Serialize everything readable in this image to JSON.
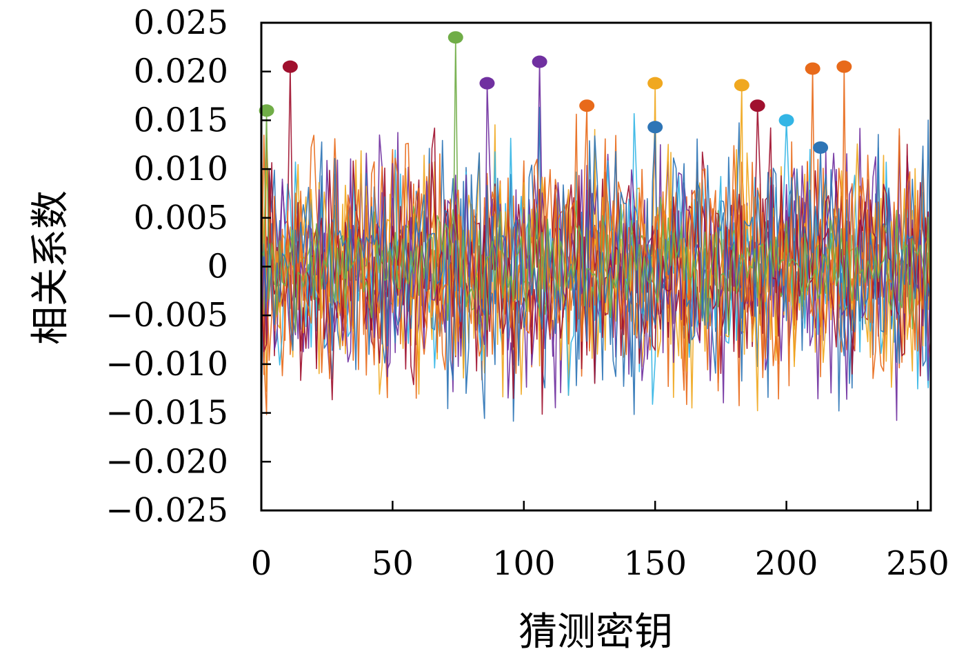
{
  "chart_data": {
    "type": "line",
    "xlabel": "猜测密钥",
    "ylabel": "相关系数",
    "xlim": [
      0,
      255
    ],
    "ylim": [
      -0.025,
      0.025
    ],
    "x_ticks": [
      "0",
      "50",
      "100",
      "150",
      "200",
      "250"
    ],
    "y_ticks": [
      "0.025",
      "0.020",
      "0.015",
      "0.010",
      "0.005",
      "0",
      "−0.005",
      "−0.010",
      "−0.015",
      "−0.020",
      "−0.025"
    ],
    "x_tick_values": [
      0,
      50,
      100,
      150,
      200,
      250
    ],
    "y_tick_values": [
      0.025,
      0.02,
      0.015,
      0.01,
      0.005,
      0,
      -0.005,
      -0.01,
      -0.015,
      -0.02,
      -0.025
    ],
    "grid": false,
    "legend": "none",
    "series": [
      {
        "color": "#7030a0",
        "seed": 11,
        "peak_x": 106,
        "peak_y": 0.021,
        "amp": 0.01
      },
      {
        "color": "#e86a1a",
        "seed": 23,
        "peak_x": 222,
        "peak_y": 0.0205,
        "amp": 0.0095
      },
      {
        "color": "#f0a820",
        "seed": 37,
        "peak_x": 150,
        "peak_y": 0.0188,
        "amp": 0.0092
      },
      {
        "color": "#2e75b6",
        "seed": 41,
        "peak_x": 150,
        "peak_y": 0.0143,
        "amp": 0.01
      },
      {
        "color": "#33b5e5",
        "seed": 53,
        "peak_x": 200,
        "peak_y": 0.015,
        "amp": 0.0095
      },
      {
        "color": "#a0102e",
        "seed": 67,
        "peak_x": 11,
        "peak_y": 0.0205,
        "amp": 0.009
      },
      {
        "color": "#70ad47",
        "seed": 79,
        "peak_x": 74,
        "peak_y": 0.0235,
        "amp": 0.0045
      },
      {
        "color": "#f0a820",
        "seed": 83,
        "peak_x": 183,
        "peak_y": 0.0186,
        "amp": 0.009
      },
      {
        "color": "#e86a1a",
        "seed": 97,
        "peak_x": 124,
        "peak_y": 0.0165,
        "amp": 0.009
      },
      {
        "color": "#7030a0",
        "seed": 101,
        "peak_x": 86,
        "peak_y": 0.0188,
        "amp": 0.009
      },
      {
        "color": "#a0102e",
        "seed": 113,
        "peak_x": 189,
        "peak_y": 0.0165,
        "amp": 0.0085
      },
      {
        "color": "#e86a1a",
        "seed": 127,
        "peak_x": 210,
        "peak_y": 0.0203,
        "amp": 0.009
      },
      {
        "color": "#2e75b6",
        "seed": 131,
        "peak_x": 213,
        "peak_y": 0.0122,
        "amp": 0.009
      },
      {
        "color": "#70ad47",
        "seed": 139,
        "peak_x": 2,
        "peak_y": 0.016,
        "amp": 0.004
      }
    ],
    "peak_markers": [
      {
        "x": 2,
        "y": 0.016,
        "color": "#70ad47"
      },
      {
        "x": 11,
        "y": 0.0205,
        "color": "#a0102e"
      },
      {
        "x": 74,
        "y": 0.0235,
        "color": "#70ad47"
      },
      {
        "x": 86,
        "y": 0.0188,
        "color": "#7030a0"
      },
      {
        "x": 106,
        "y": 0.021,
        "color": "#7030a0"
      },
      {
        "x": 124,
        "y": 0.0165,
        "color": "#e86a1a"
      },
      {
        "x": 150,
        "y": 0.0188,
        "color": "#f0a820"
      },
      {
        "x": 150,
        "y": 0.0143,
        "color": "#2e75b6"
      },
      {
        "x": 183,
        "y": 0.0186,
        "color": "#f0a820"
      },
      {
        "x": 189,
        "y": 0.0165,
        "color": "#a0102e"
      },
      {
        "x": 200,
        "y": 0.015,
        "color": "#33b5e5"
      },
      {
        "x": 210,
        "y": 0.0203,
        "color": "#e86a1a"
      },
      {
        "x": 213,
        "y": 0.0122,
        "color": "#2e75b6"
      },
      {
        "x": 222,
        "y": 0.0205,
        "color": "#e86a1a"
      }
    ]
  }
}
